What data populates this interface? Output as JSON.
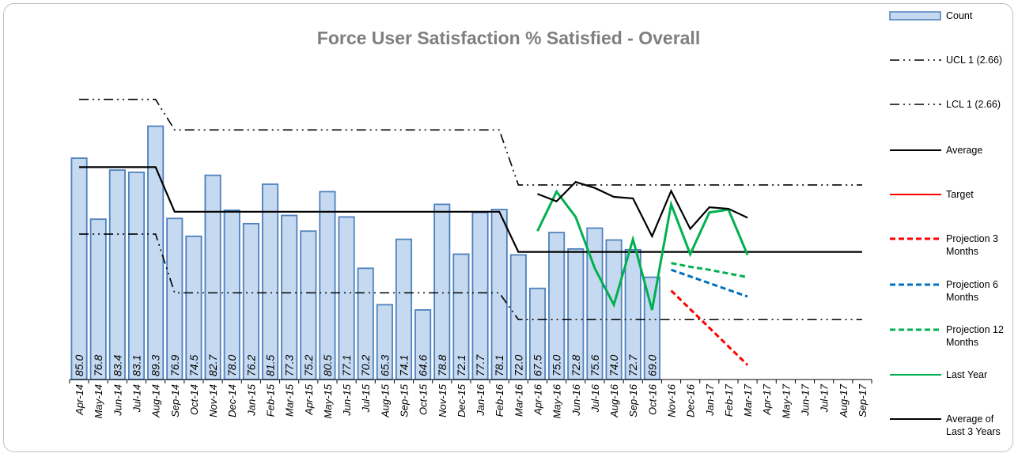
{
  "chart_data": {
    "type": "bar",
    "title": "Force User Satisfaction % Satisfied - Overall",
    "categories": [
      "Apr-14",
      "May-14",
      "Jun-14",
      "Jul-14",
      "Aug-14",
      "Sep-14",
      "Oct-14",
      "Nov-14",
      "Dec-14",
      "Jan-15",
      "Feb-15",
      "Mar-15",
      "Apr-15",
      "May-15",
      "Jun-15",
      "Jul-15",
      "Aug-15",
      "Sep-15",
      "Oct-15",
      "Nov-15",
      "Dec-15",
      "Jan-16",
      "Feb-16",
      "Mar-16",
      "Apr-16",
      "May-16",
      "Jun-16",
      "Jul-16",
      "Aug-16",
      "Sep-16",
      "Oct-16",
      "Nov-16",
      "Dec-16",
      "Jan-17",
      "Feb-17",
      "Mar-17",
      "Apr-17",
      "May-17",
      "Jun-17",
      "Jul-17",
      "Aug-17",
      "Sep-17"
    ],
    "ylim": [
      55.25,
      95
    ],
    "series": [
      {
        "name": "Count",
        "type": "bar",
        "color": "#c5d9f1",
        "edge": "#4f81bd",
        "values": [
          85.0,
          76.8,
          83.4,
          83.1,
          89.3,
          76.9,
          74.5,
          82.7,
          78.0,
          76.2,
          81.5,
          77.3,
          75.2,
          80.5,
          77.1,
          70.2,
          65.3,
          74.1,
          64.6,
          78.8,
          72.1,
          77.7,
          78.1,
          72.0,
          67.5,
          75.0,
          72.8,
          75.6,
          74.0,
          72.7,
          69.0,
          null,
          null,
          null,
          null,
          null,
          null,
          null,
          null,
          null,
          null,
          null
        ],
        "value_labels": [
          "85.0",
          "76.8",
          "83.4",
          "83.1",
          "89.3",
          "76.9",
          "74.5",
          "82.7",
          "78.0",
          "76.2",
          "81.5",
          "77.3",
          "75.2",
          "80.5",
          "77.1",
          "70.2",
          "65.3",
          "74.1",
          "64.6",
          "78.8",
          "72.1",
          "77.7",
          "78.1",
          "72.0",
          "67.5",
          "75.0",
          "72.8",
          "75.6",
          "74.0",
          "72.7",
          "69.0",
          null,
          null,
          null,
          null,
          null,
          null,
          null,
          null,
          null,
          null,
          null
        ]
      },
      {
        "name": "UCL 1 (2.66)",
        "type": "line",
        "color": "#000000",
        "style": "dashdot",
        "values": [
          92.9,
          92.9,
          92.9,
          92.9,
          92.9,
          88.8,
          88.8,
          88.8,
          88.8,
          88.8,
          88.8,
          88.8,
          88.8,
          88.8,
          88.8,
          88.8,
          88.8,
          88.8,
          88.8,
          88.8,
          88.8,
          88.8,
          88.8,
          81.4,
          81.4,
          81.4,
          81.4,
          81.4,
          81.4,
          81.4,
          81.4,
          81.4,
          81.4,
          81.4,
          81.4,
          81.4,
          81.4,
          81.4,
          81.4,
          81.4,
          81.4,
          81.4
        ]
      },
      {
        "name": "LCL 1 (2.66)",
        "type": "line",
        "color": "#000000",
        "style": "dashdot",
        "values": [
          74.8,
          74.8,
          74.8,
          74.8,
          74.8,
          66.9,
          66.9,
          66.9,
          66.9,
          66.9,
          66.9,
          66.9,
          66.9,
          66.9,
          66.9,
          66.9,
          66.9,
          66.9,
          66.9,
          66.9,
          66.9,
          66.9,
          66.9,
          63.3,
          63.3,
          63.3,
          63.3,
          63.3,
          63.3,
          63.3,
          63.3,
          63.3,
          63.3,
          63.3,
          63.3,
          63.3,
          63.3,
          63.3,
          63.3,
          63.3,
          63.3,
          63.3
        ]
      },
      {
        "name": "Average",
        "type": "line",
        "color": "#000000",
        "style": "solid",
        "values": [
          83.8,
          83.8,
          83.8,
          83.8,
          83.8,
          77.8,
          77.8,
          77.8,
          77.8,
          77.8,
          77.8,
          77.8,
          77.8,
          77.8,
          77.8,
          77.8,
          77.8,
          77.8,
          77.8,
          77.8,
          77.8,
          77.8,
          77.8,
          72.4,
          72.4,
          72.4,
          72.4,
          72.4,
          72.4,
          72.4,
          72.4,
          72.4,
          72.4,
          72.4,
          72.4,
          72.4,
          72.4,
          72.4,
          72.4,
          72.4,
          72.4,
          72.4
        ]
      },
      {
        "name": "Target",
        "type": "line",
        "color": "#ff0000",
        "style": "solid",
        "values": [
          null,
          null,
          null,
          null,
          null,
          null,
          null,
          null,
          null,
          null,
          null,
          null,
          null,
          null,
          null,
          null,
          null,
          null,
          null,
          null,
          null,
          null,
          null,
          null,
          null,
          null,
          null,
          null,
          null,
          null,
          null,
          null,
          null,
          null,
          null,
          null,
          null,
          null,
          null,
          null,
          null,
          null
        ]
      },
      {
        "name": "Projection 3 Months",
        "type": "line",
        "color": "#ff0000",
        "style": "dashed",
        "values": [
          null,
          null,
          null,
          null,
          null,
          null,
          null,
          null,
          null,
          null,
          null,
          null,
          null,
          null,
          null,
          null,
          null,
          null,
          null,
          null,
          null,
          null,
          null,
          null,
          null,
          null,
          null,
          null,
          null,
          null,
          null,
          67.2,
          64.7,
          62.2,
          59.7,
          57.2,
          null,
          null,
          null,
          null,
          null,
          null
        ]
      },
      {
        "name": "Projection 6 Months",
        "type": "line",
        "color": "#0070c0",
        "style": "dashed",
        "values": [
          null,
          null,
          null,
          null,
          null,
          null,
          null,
          null,
          null,
          null,
          null,
          null,
          null,
          null,
          null,
          null,
          null,
          null,
          null,
          null,
          null,
          null,
          null,
          null,
          null,
          null,
          null,
          null,
          null,
          null,
          null,
          70.0,
          69.1,
          68.2,
          67.3,
          66.4,
          null,
          null,
          null,
          null,
          null,
          null
        ]
      },
      {
        "name": "Projection 12 Months",
        "type": "line",
        "color": "#00b050",
        "style": "dashed",
        "values": [
          null,
          null,
          null,
          null,
          null,
          null,
          null,
          null,
          null,
          null,
          null,
          null,
          null,
          null,
          null,
          null,
          null,
          null,
          null,
          null,
          null,
          null,
          null,
          null,
          null,
          null,
          null,
          null,
          null,
          null,
          null,
          70.9,
          70.4,
          70.0,
          69.5,
          69.0,
          null,
          null,
          null,
          null,
          null,
          null
        ]
      },
      {
        "name": "Last Year",
        "type": "line",
        "color": "#00b050",
        "style": "solid",
        "values": [
          null,
          null,
          null,
          null,
          null,
          null,
          null,
          null,
          null,
          null,
          null,
          null,
          null,
          null,
          null,
          null,
          null,
          null,
          null,
          null,
          null,
          null,
          null,
          null,
          75.2,
          80.5,
          77.1,
          70.2,
          65.3,
          74.1,
          64.6,
          78.8,
          72.1,
          77.7,
          78.1,
          72.0,
          null,
          null,
          null,
          null,
          null,
          null
        ]
      },
      {
        "name": "Average of Last 3 Years",
        "type": "line",
        "color": "#000000",
        "style": "solid",
        "values": [
          null,
          null,
          null,
          null,
          null,
          null,
          null,
          null,
          null,
          null,
          null,
          null,
          null,
          null,
          null,
          null,
          null,
          null,
          null,
          null,
          null,
          null,
          null,
          null,
          80.2,
          79.2,
          81.8,
          81.0,
          79.8,
          79.6,
          74.5,
          80.6,
          75.5,
          78.4,
          78.2,
          77.0,
          null,
          null,
          null,
          null,
          null,
          null
        ]
      }
    ]
  }
}
